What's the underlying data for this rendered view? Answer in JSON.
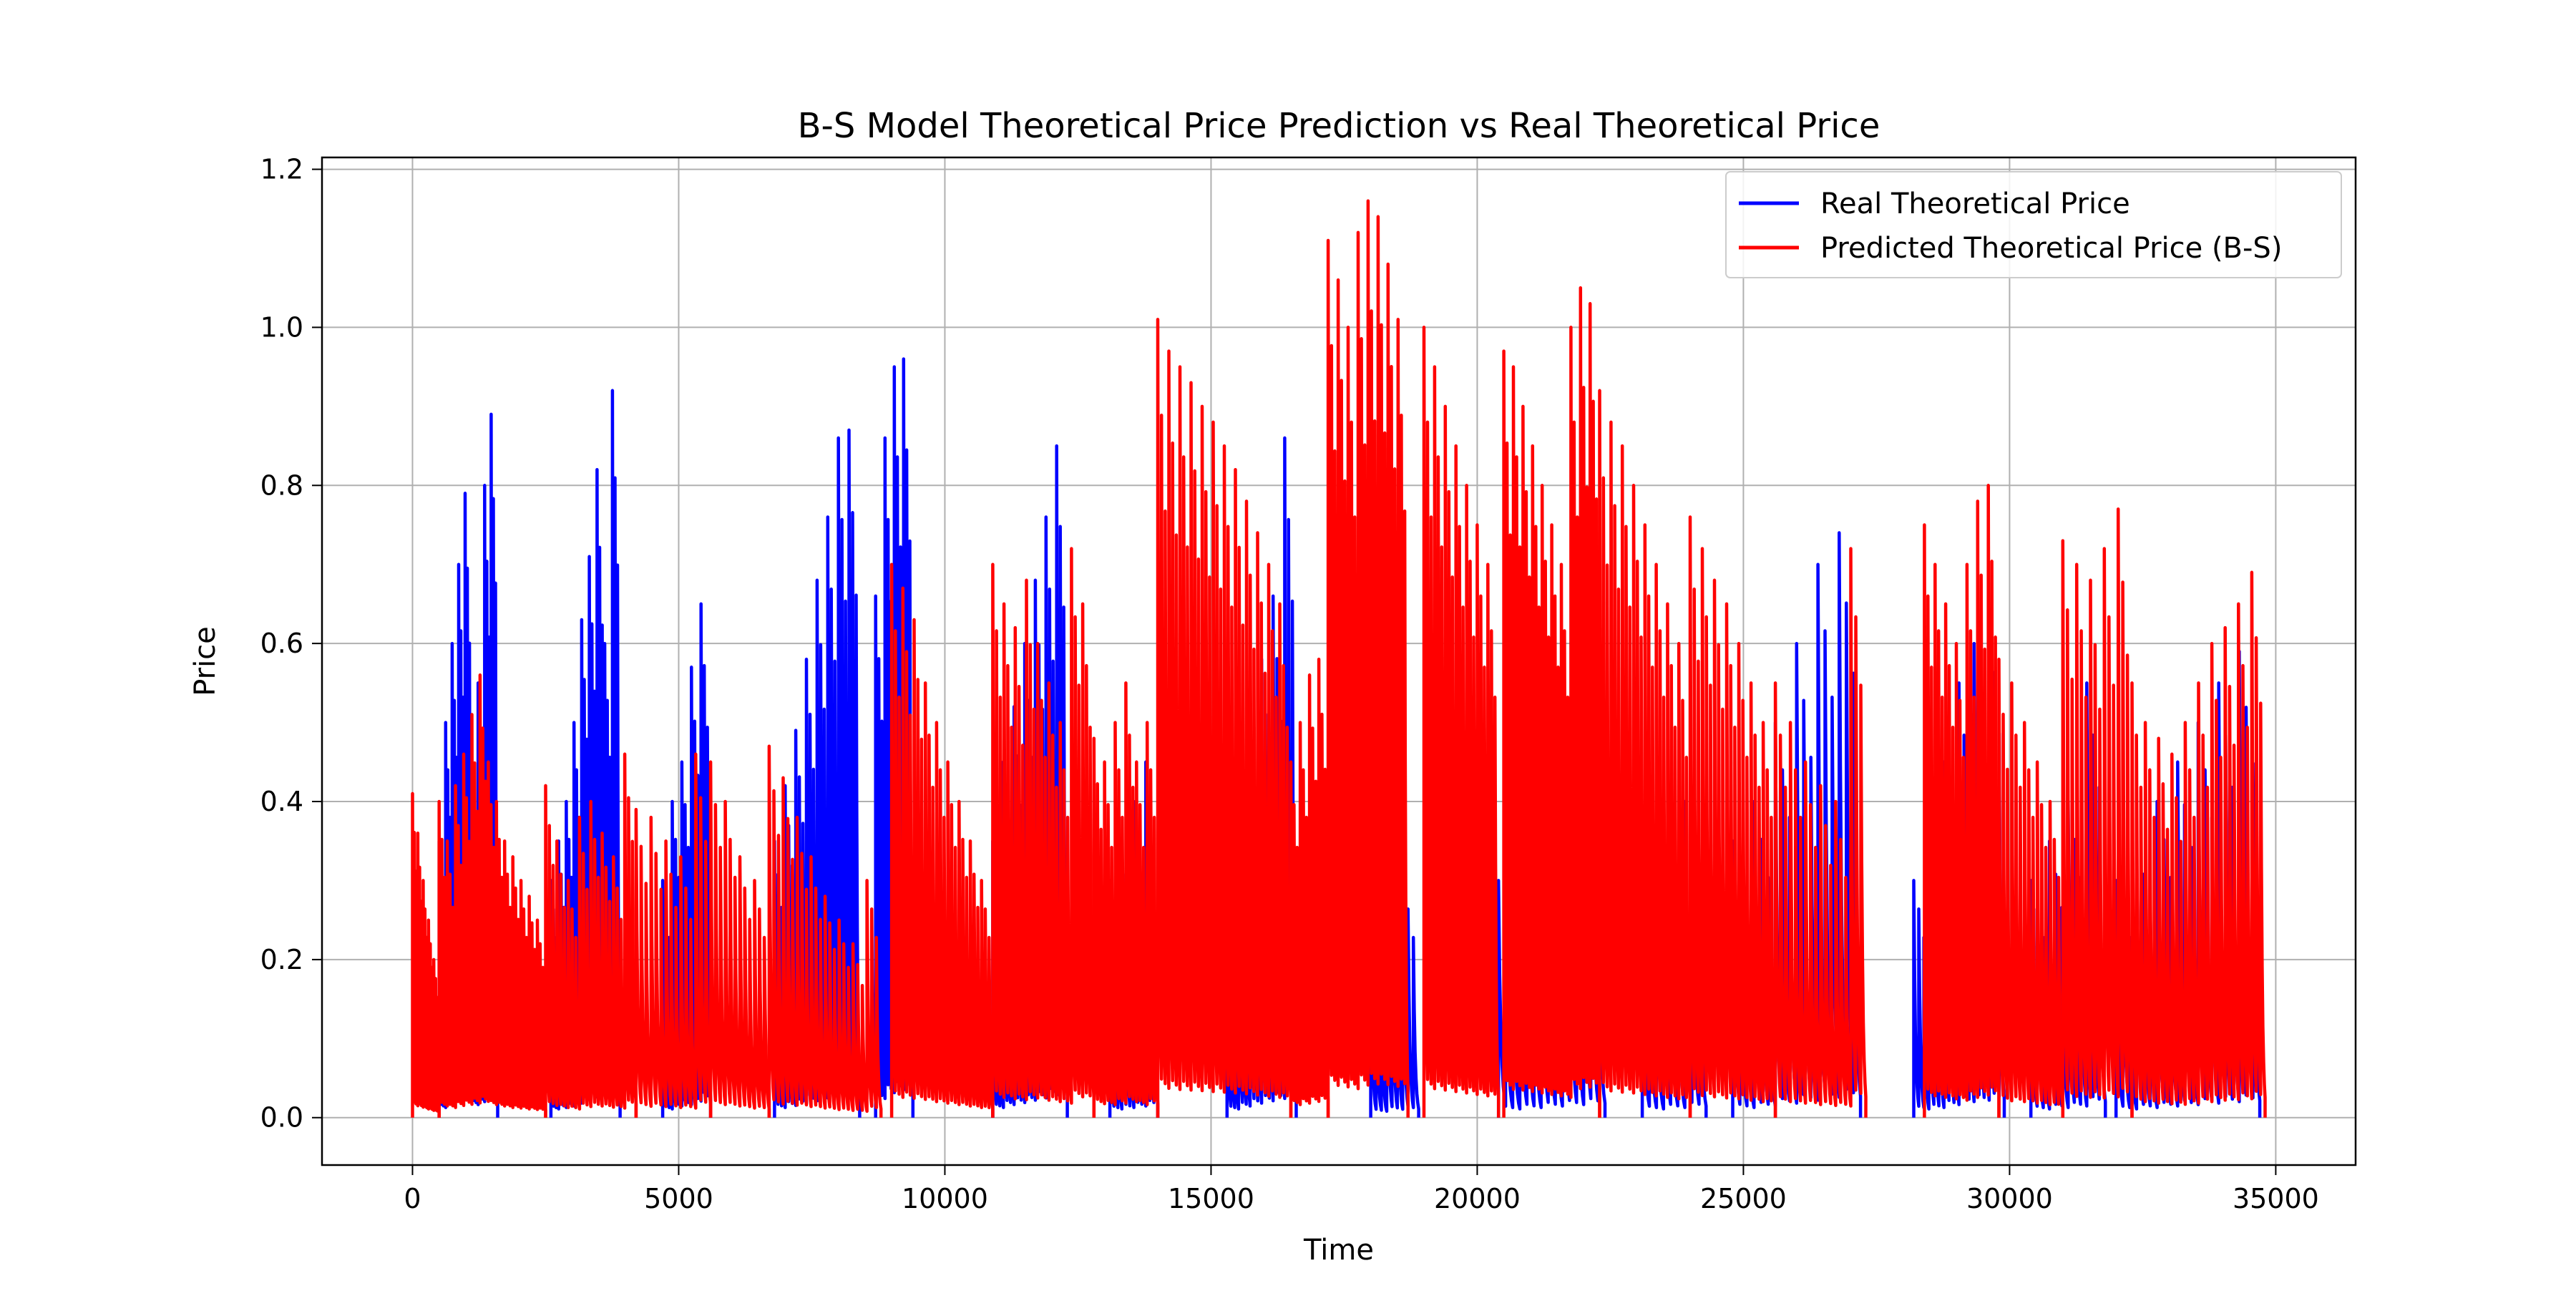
{
  "chart_data": {
    "type": "line",
    "title": "B-S Model Theoretical Price Prediction vs Real Theoretical Price",
    "xlabel": "Time",
    "ylabel": "Price",
    "xlim": [
      -1700,
      36500
    ],
    "ylim": [
      -0.06,
      1.215
    ],
    "x_ticks": [
      0,
      5000,
      10000,
      15000,
      20000,
      25000,
      30000,
      35000
    ],
    "y_ticks": [
      0.0,
      0.2,
      0.4,
      0.6,
      0.8,
      1.0,
      1.2
    ],
    "x_tick_labels": [
      "0",
      "5000",
      "10000",
      "15000",
      "20000",
      "25000",
      "30000",
      "35000"
    ],
    "y_tick_labels": [
      "0.0",
      "0.2",
      "0.4",
      "0.6",
      "0.8",
      "1.0",
      "1.2"
    ],
    "grid": true,
    "legend_position": "top-right",
    "series": [
      {
        "name": "Real Theoretical Price",
        "color": "#0000ff",
        "bursts": [
          {
            "start": 500,
            "end": 1600,
            "peaks": [
              0.35,
              0.5,
              0.6,
              0.7,
              0.79,
              0.45,
              0.55,
              0.8,
              0.89
            ]
          },
          {
            "start": 2600,
            "end": 3900,
            "peaks": [
              0.3,
              0.35,
              0.4,
              0.5,
              0.63,
              0.71,
              0.82,
              0.6,
              0.92
            ]
          },
          {
            "start": 4700,
            "end": 5600,
            "peaks": [
              0.3,
              0.4,
              0.45,
              0.57,
              0.65
            ]
          },
          {
            "start": 6800,
            "end": 8400,
            "peaks": [
              0.35,
              0.42,
              0.49,
              0.58,
              0.68,
              0.76,
              0.86,
              0.87
            ]
          },
          {
            "start": 8700,
            "end": 9400,
            "peaks": [
              0.66,
              0.86,
              0.95,
              0.96
            ]
          },
          {
            "start": 10900,
            "end": 12300,
            "peaks": [
              0.35,
              0.45,
              0.52,
              0.6,
              0.68,
              0.76,
              0.85
            ]
          },
          {
            "start": 13100,
            "end": 14000,
            "peaks": [
              0.3,
              0.35,
              0.4,
              0.45
            ]
          },
          {
            "start": 15300,
            "end": 16600,
            "peaks": [
              0.3,
              0.4,
              0.5,
              0.58,
              0.66,
              0.86
            ]
          },
          {
            "start": 18000,
            "end": 18900,
            "peaks": [
              0.22,
              0.29,
              0.3
            ]
          },
          {
            "start": 20400,
            "end": 22400,
            "peaks": [
              0.3,
              0.35,
              0.4,
              0.45,
              0.5
            ]
          },
          {
            "start": 23100,
            "end": 24300,
            "peaks": [
              0.3,
              0.35,
              0.4
            ]
          },
          {
            "start": 24800,
            "end": 27200,
            "peaks": [
              0.35,
              0.4,
              0.5,
              0.6,
              0.7,
              0.74
            ]
          },
          {
            "start": 28200,
            "end": 29900,
            "peaks": [
              0.3,
              0.35,
              0.45,
              0.55,
              0.6,
              0.64
            ]
          },
          {
            "start": 30400,
            "end": 31800,
            "peaks": [
              0.3,
              0.35,
              0.4,
              0.55
            ]
          },
          {
            "start": 32000,
            "end": 34700,
            "peaks": [
              0.3,
              0.35,
              0.4,
              0.45,
              0.5,
              0.55,
              0.59
            ]
          }
        ]
      },
      {
        "name": "Predicted Theoretical Price (B-S)",
        "color": "#ff0000",
        "bursts": [
          {
            "start": 0,
            "end": 500,
            "peaks": [
              0.41,
              0.36,
              0.3,
              0.25,
              0.2
            ]
          },
          {
            "start": 500,
            "end": 2500,
            "peaks": [
              0.4,
              0.35,
              0.42,
              0.46,
              0.51,
              0.56,
              0.45,
              0.4,
              0.35,
              0.33,
              0.3,
              0.28,
              0.25
            ]
          },
          {
            "start": 2500,
            "end": 4200,
            "peaks": [
              0.42,
              0.35,
              0.3,
              0.38,
              0.4,
              0.36,
              0.33,
              0.46
            ]
          },
          {
            "start": 4200,
            "end": 5600,
            "peaks": [
              0.39,
              0.38,
              0.35,
              0.33,
              0.46
            ]
          },
          {
            "start": 5600,
            "end": 6700,
            "peaks": [
              0.45,
              0.4,
              0.33,
              0.3
            ]
          },
          {
            "start": 6700,
            "end": 8800,
            "peaks": [
              0.47,
              0.43,
              0.38,
              0.33,
              0.28,
              0.25,
              0.22,
              0.3
            ]
          },
          {
            "start": 9000,
            "end": 10900,
            "peaks": [
              0.7,
              0.67,
              0.63,
              0.55,
              0.5,
              0.45,
              0.4,
              0.35,
              0.3
            ]
          },
          {
            "start": 10900,
            "end": 12800,
            "peaks": [
              0.7,
              0.65,
              0.62,
              0.68,
              0.6,
              0.55,
              0.5,
              0.72,
              0.65
            ]
          },
          {
            "start": 12800,
            "end": 14000,
            "peaks": [
              0.48,
              0.45,
              0.5,
              0.55,
              0.45,
              0.5
            ]
          },
          {
            "start": 14000,
            "end": 16500,
            "peaks": [
              1.01,
              0.97,
              0.95,
              0.93,
              0.9,
              0.88,
              0.85,
              0.82,
              0.78,
              0.74,
              0.7,
              0.65
            ]
          },
          {
            "start": 16500,
            "end": 17200,
            "peaks": [
              0.45,
              0.5,
              0.56,
              0.58
            ]
          },
          {
            "start": 17200,
            "end": 18700,
            "peaks": [
              1.11,
              1.06,
              1.0,
              1.12,
              1.16,
              1.14,
              1.08,
              1.01
            ]
          },
          {
            "start": 19000,
            "end": 20400,
            "peaks": [
              1.0,
              0.95,
              0.9,
              0.85,
              0.8,
              0.75,
              0.7
            ]
          },
          {
            "start": 20500,
            "end": 22300,
            "peaks": [
              0.97,
              0.95,
              0.9,
              0.85,
              0.8,
              0.75,
              0.7,
              1.0,
              1.05,
              1.03
            ]
          },
          {
            "start": 22300,
            "end": 24000,
            "peaks": [
              0.92,
              0.88,
              0.85,
              0.8,
              0.75,
              0.7,
              0.65,
              0.6
            ]
          },
          {
            "start": 24000,
            "end": 25600,
            "peaks": [
              0.76,
              0.72,
              0.68,
              0.65,
              0.6,
              0.55,
              0.5
            ]
          },
          {
            "start": 25600,
            "end": 27300,
            "peaks": [
              0.55,
              0.5,
              0.45,
              0.42,
              0.4,
              0.72
            ]
          },
          {
            "start": 28400,
            "end": 29800,
            "peaks": [
              0.75,
              0.7,
              0.65,
              0.6,
              0.7,
              0.78,
              0.8
            ]
          },
          {
            "start": 29800,
            "end": 31000,
            "peaks": [
              0.58,
              0.55,
              0.5,
              0.45,
              0.4
            ]
          },
          {
            "start": 31000,
            "end": 32300,
            "peaks": [
              0.73,
              0.7,
              0.68,
              0.72,
              0.77
            ]
          },
          {
            "start": 32300,
            "end": 34800,
            "peaks": [
              0.55,
              0.5,
              0.48,
              0.46,
              0.5,
              0.55,
              0.6,
              0.62,
              0.65,
              0.69
            ]
          }
        ]
      }
    ]
  }
}
